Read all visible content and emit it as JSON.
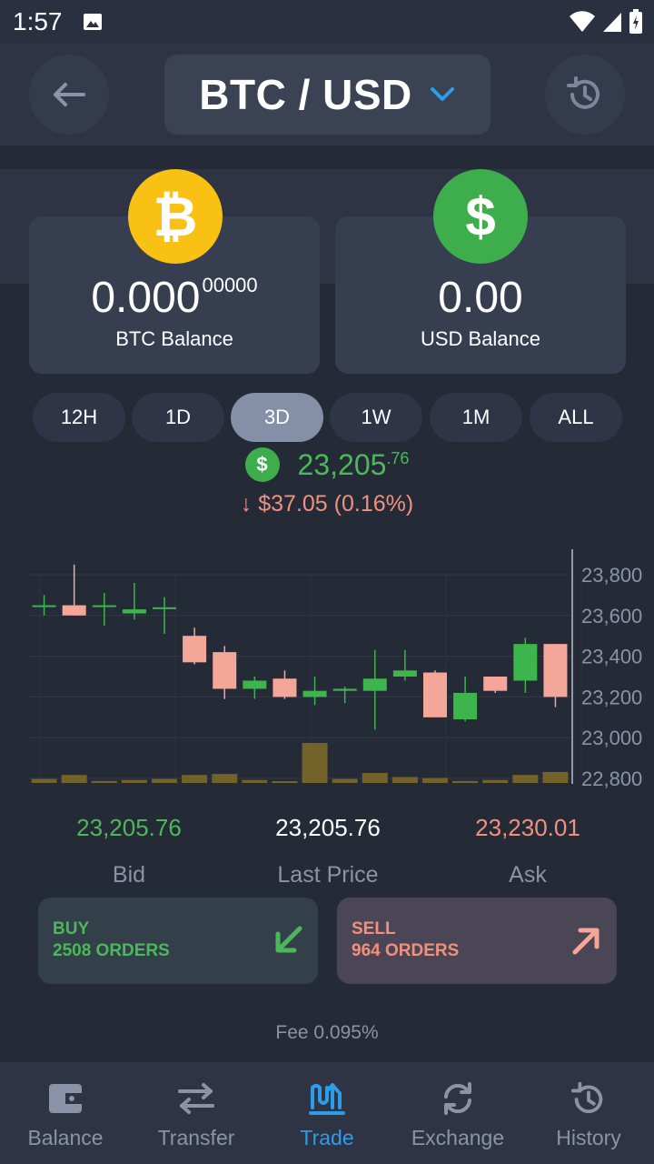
{
  "status_bar": {
    "time": "1:57"
  },
  "header": {
    "pair": "BTC / USD"
  },
  "balances": {
    "btc": {
      "symbol": "₿",
      "whole": "0.000",
      "fraction": "00000",
      "label": "BTC Balance"
    },
    "usd": {
      "symbol": "$",
      "amount": "0.00",
      "label": "USD Balance"
    }
  },
  "ranges": [
    "12H",
    "1D",
    "3D",
    "1W",
    "1M",
    "ALL"
  ],
  "selected_range": "3D",
  "price": {
    "symbol": "$",
    "main": "23,205",
    "fraction": ".76",
    "change": "↓ $37.05 (0.16%)"
  },
  "chart_data": {
    "type": "candlestick",
    "y_ticks": [
      "23,800",
      "23,600",
      "23,400",
      "23,200",
      "23,000",
      "22,800"
    ],
    "ylim": [
      22800,
      23800
    ],
    "candles": [
      {
        "open": 23650,
        "close": 23650,
        "high": 23700,
        "low": 23600
      },
      {
        "open": 23650,
        "close": 23600,
        "high": 23850,
        "low": 23600
      },
      {
        "open": 23650,
        "close": 23650,
        "high": 23710,
        "low": 23550
      },
      {
        "open": 23610,
        "close": 23630,
        "high": 23760,
        "low": 23580
      },
      {
        "open": 23640,
        "close": 23640,
        "high": 23690,
        "low": 23510
      },
      {
        "open": 23500,
        "close": 23370,
        "high": 23540,
        "low": 23360
      },
      {
        "open": 23420,
        "close": 23240,
        "high": 23450,
        "low": 23190
      },
      {
        "open": 23240,
        "close": 23280,
        "high": 23300,
        "low": 23190
      },
      {
        "open": 23290,
        "close": 23200,
        "high": 23330,
        "low": 23190
      },
      {
        "open": 23200,
        "close": 23230,
        "high": 23300,
        "low": 23160
      },
      {
        "open": 23230,
        "close": 23240,
        "high": 23250,
        "low": 23170
      },
      {
        "open": 23230,
        "close": 23290,
        "high": 23430,
        "low": 23040
      },
      {
        "open": 23300,
        "close": 23330,
        "high": 23430,
        "low": 23280
      },
      {
        "open": 23320,
        "close": 23100,
        "high": 23330,
        "low": 23100
      },
      {
        "open": 23090,
        "close": 23220,
        "high": 23300,
        "low": 23080
      },
      {
        "open": 23300,
        "close": 23230,
        "high": 23300,
        "low": 23220
      },
      {
        "open": 23280,
        "close": 23460,
        "high": 23490,
        "low": 23220
      },
      {
        "open": 23460,
        "close": 23200,
        "high": 23460,
        "low": 23150
      }
    ],
    "volumes": [
      2,
      4,
      1,
      1.5,
      2,
      4,
      4.5,
      1.5,
      0.5,
      20,
      2,
      5,
      3,
      2.5,
      1,
      1.5,
      4,
      5.5
    ]
  },
  "quotes": {
    "bid": {
      "value": "23,205.76",
      "label": "Bid"
    },
    "last": {
      "value": "23,205.76",
      "label": "Last Price"
    },
    "ask": {
      "value": "23,230.01",
      "label": "Ask"
    }
  },
  "orders": {
    "buy": {
      "title": "BUY",
      "count": "2508 ORDERS"
    },
    "sell": {
      "title": "SELL",
      "count": "964 ORDERS"
    }
  },
  "fee": "Fee 0.095%",
  "nav": [
    {
      "label": "Balance",
      "icon": "wallet-icon"
    },
    {
      "label": "Transfer",
      "icon": "transfer-icon"
    },
    {
      "label": "Trade",
      "icon": "trade-icon"
    },
    {
      "label": "Exchange",
      "icon": "exchange-icon"
    },
    {
      "label": "History",
      "icon": "history-icon"
    }
  ],
  "active_nav": "Trade",
  "colors": {
    "up": "#3eb44c",
    "down": "#f4a799",
    "accent": "#2c9de8",
    "btc": "#f8c114",
    "usd": "#3eae4c",
    "volume": "#73622a"
  }
}
